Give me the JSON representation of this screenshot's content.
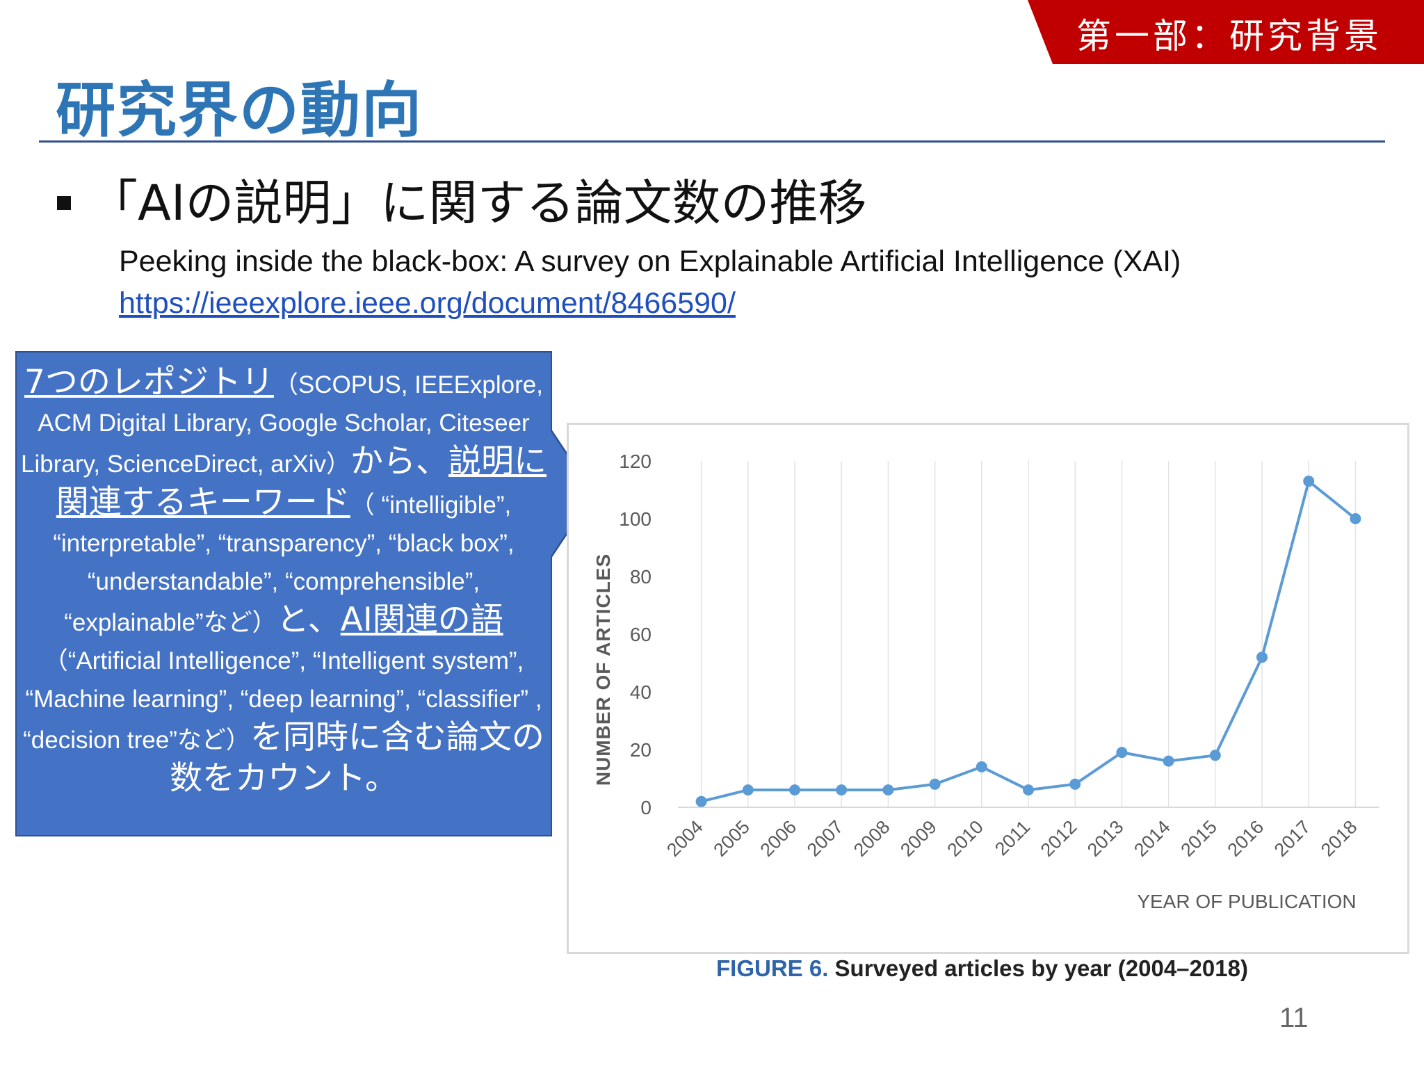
{
  "header": {
    "section_banner": "第一部：研究背景",
    "title": "研究界の動向",
    "banner_color": "#c00000",
    "title_color": "#2e75b6"
  },
  "bullet": {
    "text": "「AIの説明」に関する論文数の推移"
  },
  "reference": {
    "title": "Peeking inside the black-box: A survey on Explainable Artificial Intelligence (XAI)",
    "link": "https://ieeexplore.ieee.org/document/8466590/"
  },
  "callout": {
    "background": "#4472c4",
    "p1_link": "7つのレポジトリ",
    "p1_rest": "（SCOPUS, IEEExplore, ACM Digital Library, Google Scholar, Citeseer Library, ScienceDirect, arXiv）",
    "p2_a": "から、",
    "p2_link": "説明に関連するキーワード",
    "p2_rest": "（ “intelligible”, “interpretable”, “transparency”, “black box”, “understandable”, “comprehensible”, “explainable”など）",
    "p3_a": "と、",
    "p3_link": "AI関連の語",
    "p3_rest": "（“Artificial Intelligence”, “Intelligent system”, “Machine learning”, “deep learning”, “classifier” , “decision tree”など）",
    "p4_a": "を同時に含む論文の数をカウント。"
  },
  "chart_data": {
    "type": "line",
    "x": [
      "2004",
      "2005",
      "2006",
      "2007",
      "2008",
      "2009",
      "2010",
      "2011",
      "2012",
      "2013",
      "2014",
      "2015",
      "2016",
      "2017",
      "2018"
    ],
    "series": [
      {
        "values": [
          2,
          6,
          6,
          6,
          6,
          8,
          14,
          6,
          8,
          19,
          16,
          18,
          52,
          113,
          100
        ]
      }
    ],
    "xlabel": "YEAR OF PUBLICATION",
    "ylabel": "NUMBER OF ARTICLES",
    "yticks": [
      0,
      20,
      40,
      60,
      80,
      100,
      120
    ],
    "ylim": [
      0,
      120
    ],
    "grid": "vertical",
    "line_color": "#5b9bd5",
    "caption_label": "FIGURE 6.",
    "caption_text": " Surveyed articles by year (2004–2018)"
  },
  "page_number": "11"
}
